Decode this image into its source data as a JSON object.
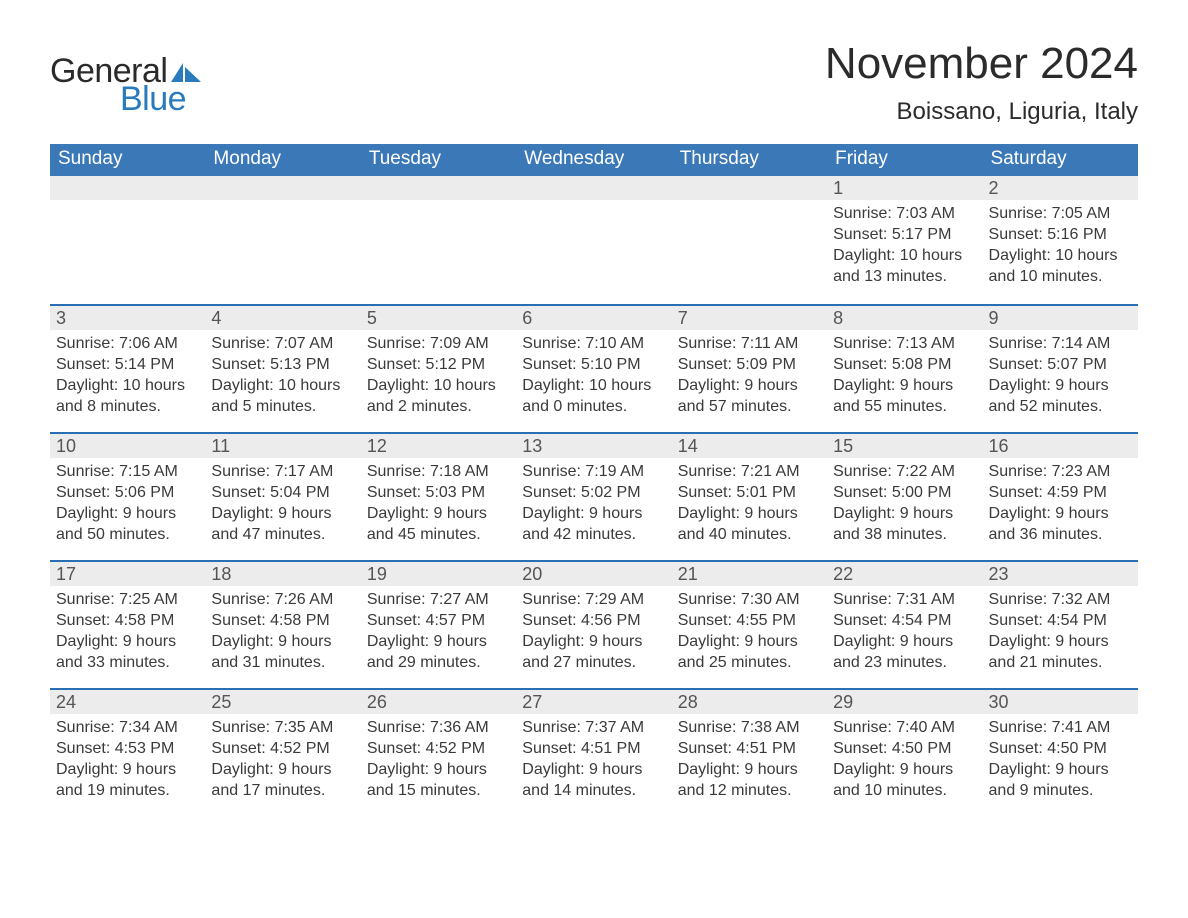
{
  "logo": {
    "line1": "General",
    "line2": "Blue",
    "icon_color": "#2a7bbd"
  },
  "title": {
    "month_year": "November 2024",
    "location": "Boissano, Liguria, Italy"
  },
  "colors": {
    "header_blue": "#3b78b8",
    "accent_blue": "#2a6fb5",
    "cell_gray": "#ececec",
    "page_bg": "#ffffff",
    "text_dark": "#2b2b2b"
  },
  "weekdays": [
    "Sunday",
    "Monday",
    "Tuesday",
    "Wednesday",
    "Thursday",
    "Friday",
    "Saturday"
  ],
  "weeks": [
    [
      {
        "empty": true
      },
      {
        "empty": true
      },
      {
        "empty": true
      },
      {
        "empty": true
      },
      {
        "empty": true
      },
      {
        "day": 1,
        "sunrise": "Sunrise: 7:03 AM",
        "sunset": "Sunset: 5:17 PM",
        "daylight": "Daylight: 10 hours and 13 minutes."
      },
      {
        "day": 2,
        "sunrise": "Sunrise: 7:05 AM",
        "sunset": "Sunset: 5:16 PM",
        "daylight": "Daylight: 10 hours and 10 minutes."
      }
    ],
    [
      {
        "day": 3,
        "sunrise": "Sunrise: 7:06 AM",
        "sunset": "Sunset: 5:14 PM",
        "daylight": "Daylight: 10 hours and 8 minutes."
      },
      {
        "day": 4,
        "sunrise": "Sunrise: 7:07 AM",
        "sunset": "Sunset: 5:13 PM",
        "daylight": "Daylight: 10 hours and 5 minutes."
      },
      {
        "day": 5,
        "sunrise": "Sunrise: 7:09 AM",
        "sunset": "Sunset: 5:12 PM",
        "daylight": "Daylight: 10 hours and 2 minutes."
      },
      {
        "day": 6,
        "sunrise": "Sunrise: 7:10 AM",
        "sunset": "Sunset: 5:10 PM",
        "daylight": "Daylight: 10 hours and 0 minutes."
      },
      {
        "day": 7,
        "sunrise": "Sunrise: 7:11 AM",
        "sunset": "Sunset: 5:09 PM",
        "daylight": "Daylight: 9 hours and 57 minutes."
      },
      {
        "day": 8,
        "sunrise": "Sunrise: 7:13 AM",
        "sunset": "Sunset: 5:08 PM",
        "daylight": "Daylight: 9 hours and 55 minutes."
      },
      {
        "day": 9,
        "sunrise": "Sunrise: 7:14 AM",
        "sunset": "Sunset: 5:07 PM",
        "daylight": "Daylight: 9 hours and 52 minutes."
      }
    ],
    [
      {
        "day": 10,
        "sunrise": "Sunrise: 7:15 AM",
        "sunset": "Sunset: 5:06 PM",
        "daylight": "Daylight: 9 hours and 50 minutes."
      },
      {
        "day": 11,
        "sunrise": "Sunrise: 7:17 AM",
        "sunset": "Sunset: 5:04 PM",
        "daylight": "Daylight: 9 hours and 47 minutes."
      },
      {
        "day": 12,
        "sunrise": "Sunrise: 7:18 AM",
        "sunset": "Sunset: 5:03 PM",
        "daylight": "Daylight: 9 hours and 45 minutes."
      },
      {
        "day": 13,
        "sunrise": "Sunrise: 7:19 AM",
        "sunset": "Sunset: 5:02 PM",
        "daylight": "Daylight: 9 hours and 42 minutes."
      },
      {
        "day": 14,
        "sunrise": "Sunrise: 7:21 AM",
        "sunset": "Sunset: 5:01 PM",
        "daylight": "Daylight: 9 hours and 40 minutes."
      },
      {
        "day": 15,
        "sunrise": "Sunrise: 7:22 AM",
        "sunset": "Sunset: 5:00 PM",
        "daylight": "Daylight: 9 hours and 38 minutes."
      },
      {
        "day": 16,
        "sunrise": "Sunrise: 7:23 AM",
        "sunset": "Sunset: 4:59 PM",
        "daylight": "Daylight: 9 hours and 36 minutes."
      }
    ],
    [
      {
        "day": 17,
        "sunrise": "Sunrise: 7:25 AM",
        "sunset": "Sunset: 4:58 PM",
        "daylight": "Daylight: 9 hours and 33 minutes."
      },
      {
        "day": 18,
        "sunrise": "Sunrise: 7:26 AM",
        "sunset": "Sunset: 4:58 PM",
        "daylight": "Daylight: 9 hours and 31 minutes."
      },
      {
        "day": 19,
        "sunrise": "Sunrise: 7:27 AM",
        "sunset": "Sunset: 4:57 PM",
        "daylight": "Daylight: 9 hours and 29 minutes."
      },
      {
        "day": 20,
        "sunrise": "Sunrise: 7:29 AM",
        "sunset": "Sunset: 4:56 PM",
        "daylight": "Daylight: 9 hours and 27 minutes."
      },
      {
        "day": 21,
        "sunrise": "Sunrise: 7:30 AM",
        "sunset": "Sunset: 4:55 PM",
        "daylight": "Daylight: 9 hours and 25 minutes."
      },
      {
        "day": 22,
        "sunrise": "Sunrise: 7:31 AM",
        "sunset": "Sunset: 4:54 PM",
        "daylight": "Daylight: 9 hours and 23 minutes."
      },
      {
        "day": 23,
        "sunrise": "Sunrise: 7:32 AM",
        "sunset": "Sunset: 4:54 PM",
        "daylight": "Daylight: 9 hours and 21 minutes."
      }
    ],
    [
      {
        "day": 24,
        "sunrise": "Sunrise: 7:34 AM",
        "sunset": "Sunset: 4:53 PM",
        "daylight": "Daylight: 9 hours and 19 minutes."
      },
      {
        "day": 25,
        "sunrise": "Sunrise: 7:35 AM",
        "sunset": "Sunset: 4:52 PM",
        "daylight": "Daylight: 9 hours and 17 minutes."
      },
      {
        "day": 26,
        "sunrise": "Sunrise: 7:36 AM",
        "sunset": "Sunset: 4:52 PM",
        "daylight": "Daylight: 9 hours and 15 minutes."
      },
      {
        "day": 27,
        "sunrise": "Sunrise: 7:37 AM",
        "sunset": "Sunset: 4:51 PM",
        "daylight": "Daylight: 9 hours and 14 minutes."
      },
      {
        "day": 28,
        "sunrise": "Sunrise: 7:38 AM",
        "sunset": "Sunset: 4:51 PM",
        "daylight": "Daylight: 9 hours and 12 minutes."
      },
      {
        "day": 29,
        "sunrise": "Sunrise: 7:40 AM",
        "sunset": "Sunset: 4:50 PM",
        "daylight": "Daylight: 9 hours and 10 minutes."
      },
      {
        "day": 30,
        "sunrise": "Sunrise: 7:41 AM",
        "sunset": "Sunset: 4:50 PM",
        "daylight": "Daylight: 9 hours and 9 minutes."
      }
    ]
  ]
}
